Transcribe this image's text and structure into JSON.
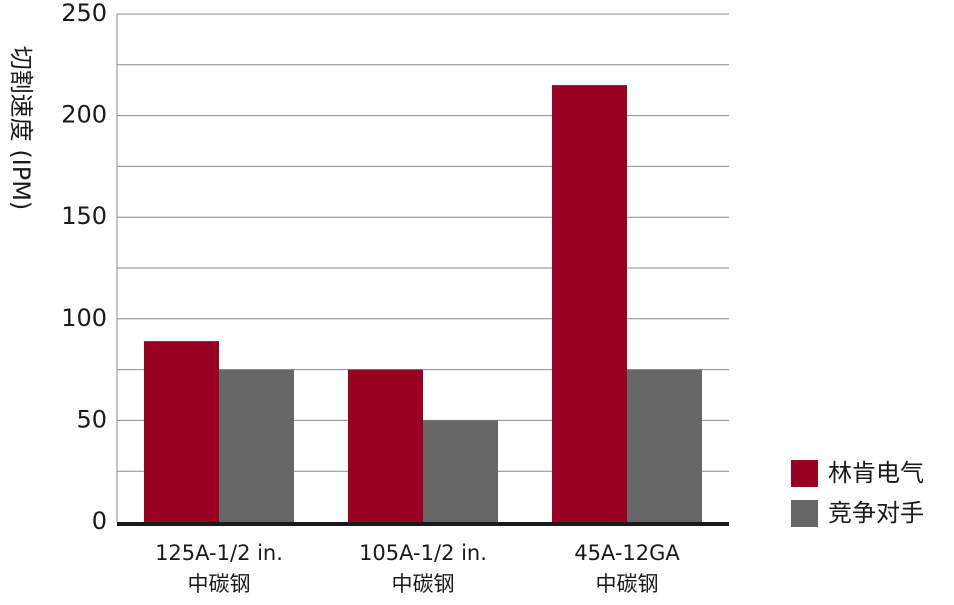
{
  "chart_data": {
    "type": "bar",
    "title": "",
    "xlabel": "",
    "ylabel": "切割速度 (IPM)",
    "ylim": [
      0,
      250
    ],
    "yticks": [
      0,
      50,
      100,
      150,
      200,
      250
    ],
    "grid": true,
    "legend_position": "bottom-right",
    "categories": [
      {
        "line1": "125A-1/2 in.",
        "line2": "中碳钢"
      },
      {
        "line1": "105A-1/2 in.",
        "line2": "中碳钢"
      },
      {
        "line1": "45A-12GA",
        "line2": "中碳钢"
      }
    ],
    "series": [
      {
        "name": "林肯电气",
        "color": "#9a0021",
        "values": [
          89,
          75,
          215
        ]
      },
      {
        "name": "竞争对手",
        "color": "#666666",
        "values": [
          75,
          50,
          75
        ]
      }
    ]
  }
}
